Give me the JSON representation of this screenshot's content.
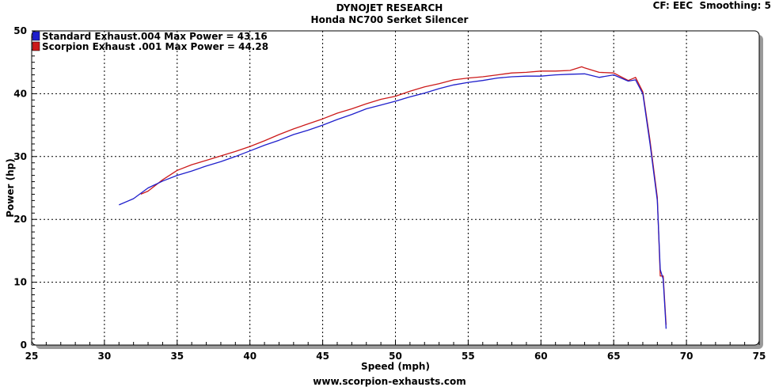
{
  "header": {
    "title": "DYNOJET RESEARCH",
    "subtitle": "Honda NC700 Serket Silencer",
    "cf_info": "CF: EEC  Smoothing: 5"
  },
  "footer": {
    "website": "www.scorpion-exhausts.com"
  },
  "colors": {
    "standard": "#1f1fcc",
    "scorpion": "#cc1a1a",
    "grid": "#000000",
    "shadow": "#9a9a9a"
  },
  "chart_data": {
    "type": "line",
    "title": "DYNOJET RESEARCH",
    "subtitle": "Honda NC700 Serket Silencer",
    "xlabel": "Speed (mph)",
    "ylabel": "Power (hp)",
    "xlim": [
      25,
      75
    ],
    "ylim": [
      0,
      50
    ],
    "xticks": [
      25,
      30,
      35,
      40,
      45,
      50,
      55,
      60,
      65,
      70,
      75
    ],
    "yticks": [
      0,
      10,
      20,
      30,
      40,
      50
    ],
    "grid": true,
    "legend_position": "top-left",
    "series": [
      {
        "name": "Standard Exhaust.004 Max Power = 43.16",
        "color": "#1f1fcc",
        "x": [
          31,
          32,
          33,
          34,
          35,
          36,
          37,
          38,
          39,
          40,
          41,
          42,
          43,
          44,
          45,
          46,
          47,
          48,
          49,
          50,
          51,
          52,
          53,
          54,
          55,
          56,
          57,
          58,
          59,
          60,
          61,
          62,
          63,
          64,
          65,
          66,
          66.5,
          67,
          67.5,
          68,
          68.2,
          68.4,
          68.6
        ],
        "y": [
          22.3,
          23.3,
          25.0,
          26.1,
          27.0,
          27.7,
          28.5,
          29.2,
          30.0,
          30.9,
          31.8,
          32.6,
          33.5,
          34.2,
          35.0,
          35.9,
          36.7,
          37.6,
          38.2,
          38.8,
          39.5,
          40.1,
          40.8,
          41.4,
          41.8,
          42.1,
          42.5,
          42.7,
          42.8,
          42.8,
          43.0,
          43.1,
          43.16,
          42.6,
          43.0,
          42.0,
          42.2,
          40.0,
          32.0,
          23.0,
          12.0,
          10.5,
          2.6
        ]
      },
      {
        "name": "Scorpion Exhaust .001 Max Power = 44.28",
        "color": "#cc1a1a",
        "x": [
          32.5,
          33,
          34,
          35,
          36,
          37,
          38,
          39,
          40,
          41,
          42,
          43,
          44,
          45,
          46,
          47,
          48,
          49,
          50,
          51,
          52,
          53,
          54,
          55,
          56,
          57,
          58,
          59,
          60,
          61,
          62,
          62.8,
          63,
          64,
          65,
          66,
          66.5,
          67,
          67.5,
          68,
          68.2,
          68.4,
          68.6
        ],
        "y": [
          24.0,
          24.5,
          26.3,
          27.8,
          28.7,
          29.4,
          30.1,
          30.8,
          31.6,
          32.5,
          33.5,
          34.4,
          35.2,
          36.0,
          36.9,
          37.6,
          38.4,
          39.1,
          39.6,
          40.4,
          41.1,
          41.6,
          42.2,
          42.5,
          42.7,
          43.0,
          43.3,
          43.4,
          43.6,
          43.6,
          43.7,
          44.28,
          44.1,
          43.4,
          43.3,
          42.1,
          42.6,
          40.3,
          32.5,
          23.5,
          11.0,
          11.0,
          3.2
        ]
      }
    ]
  }
}
